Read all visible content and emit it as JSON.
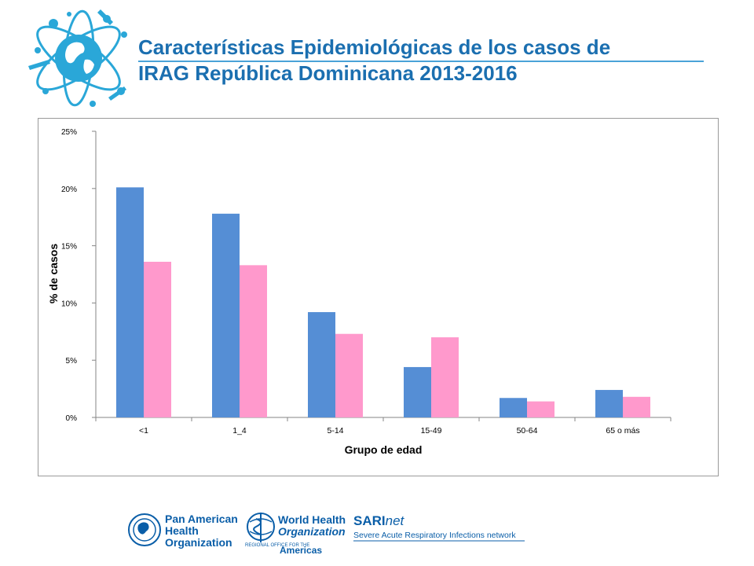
{
  "slide": {
    "title_line1": "Características Epidemiológicas de los casos de",
    "title_line2": "IRAG República Dominicana 2013-2016"
  },
  "chart_data": {
    "type": "bar",
    "categories": [
      "<1",
      "1_4",
      "5-14",
      "15-49",
      "50-64",
      "65 o más"
    ],
    "series": [
      {
        "color": "#558ed5",
        "values": [
          20.1,
          17.8,
          9.2,
          4.4,
          1.7,
          2.4
        ]
      },
      {
        "color": "#ff99cc",
        "values": [
          13.6,
          13.3,
          7.3,
          7.0,
          1.4,
          1.8
        ]
      }
    ],
    "xlabel": "Grupo de edad",
    "ylabel": "% de casos",
    "ylim": [
      0,
      25
    ],
    "yticks": [
      0,
      5,
      10,
      15,
      20,
      25
    ],
    "ytick_labels": [
      "0%",
      "5%",
      "10%",
      "15%",
      "20%",
      "25%"
    ],
    "grid": false,
    "legend": "none"
  },
  "footer": {
    "paho": {
      "line1": "Pan American",
      "line2": "Health",
      "line3": "Organization"
    },
    "who": {
      "line1": "World Health",
      "line2": "Organization",
      "regional": "REGIONAL OFFICE FOR THE",
      "americas": "Americas"
    },
    "sari": {
      "bold": "SARI",
      "italic": "net",
      "subtitle": "Severe Acute Respiratory Infections network"
    }
  },
  "colors": {
    "title": "#1b6fb0",
    "accent_line": "#4aa3d8",
    "logo": "#2aa7d8"
  },
  "icons": {
    "logo": "globe-atom-virus-logo",
    "paho": "paho-emblem-icon",
    "who": "who-emblem-icon"
  }
}
